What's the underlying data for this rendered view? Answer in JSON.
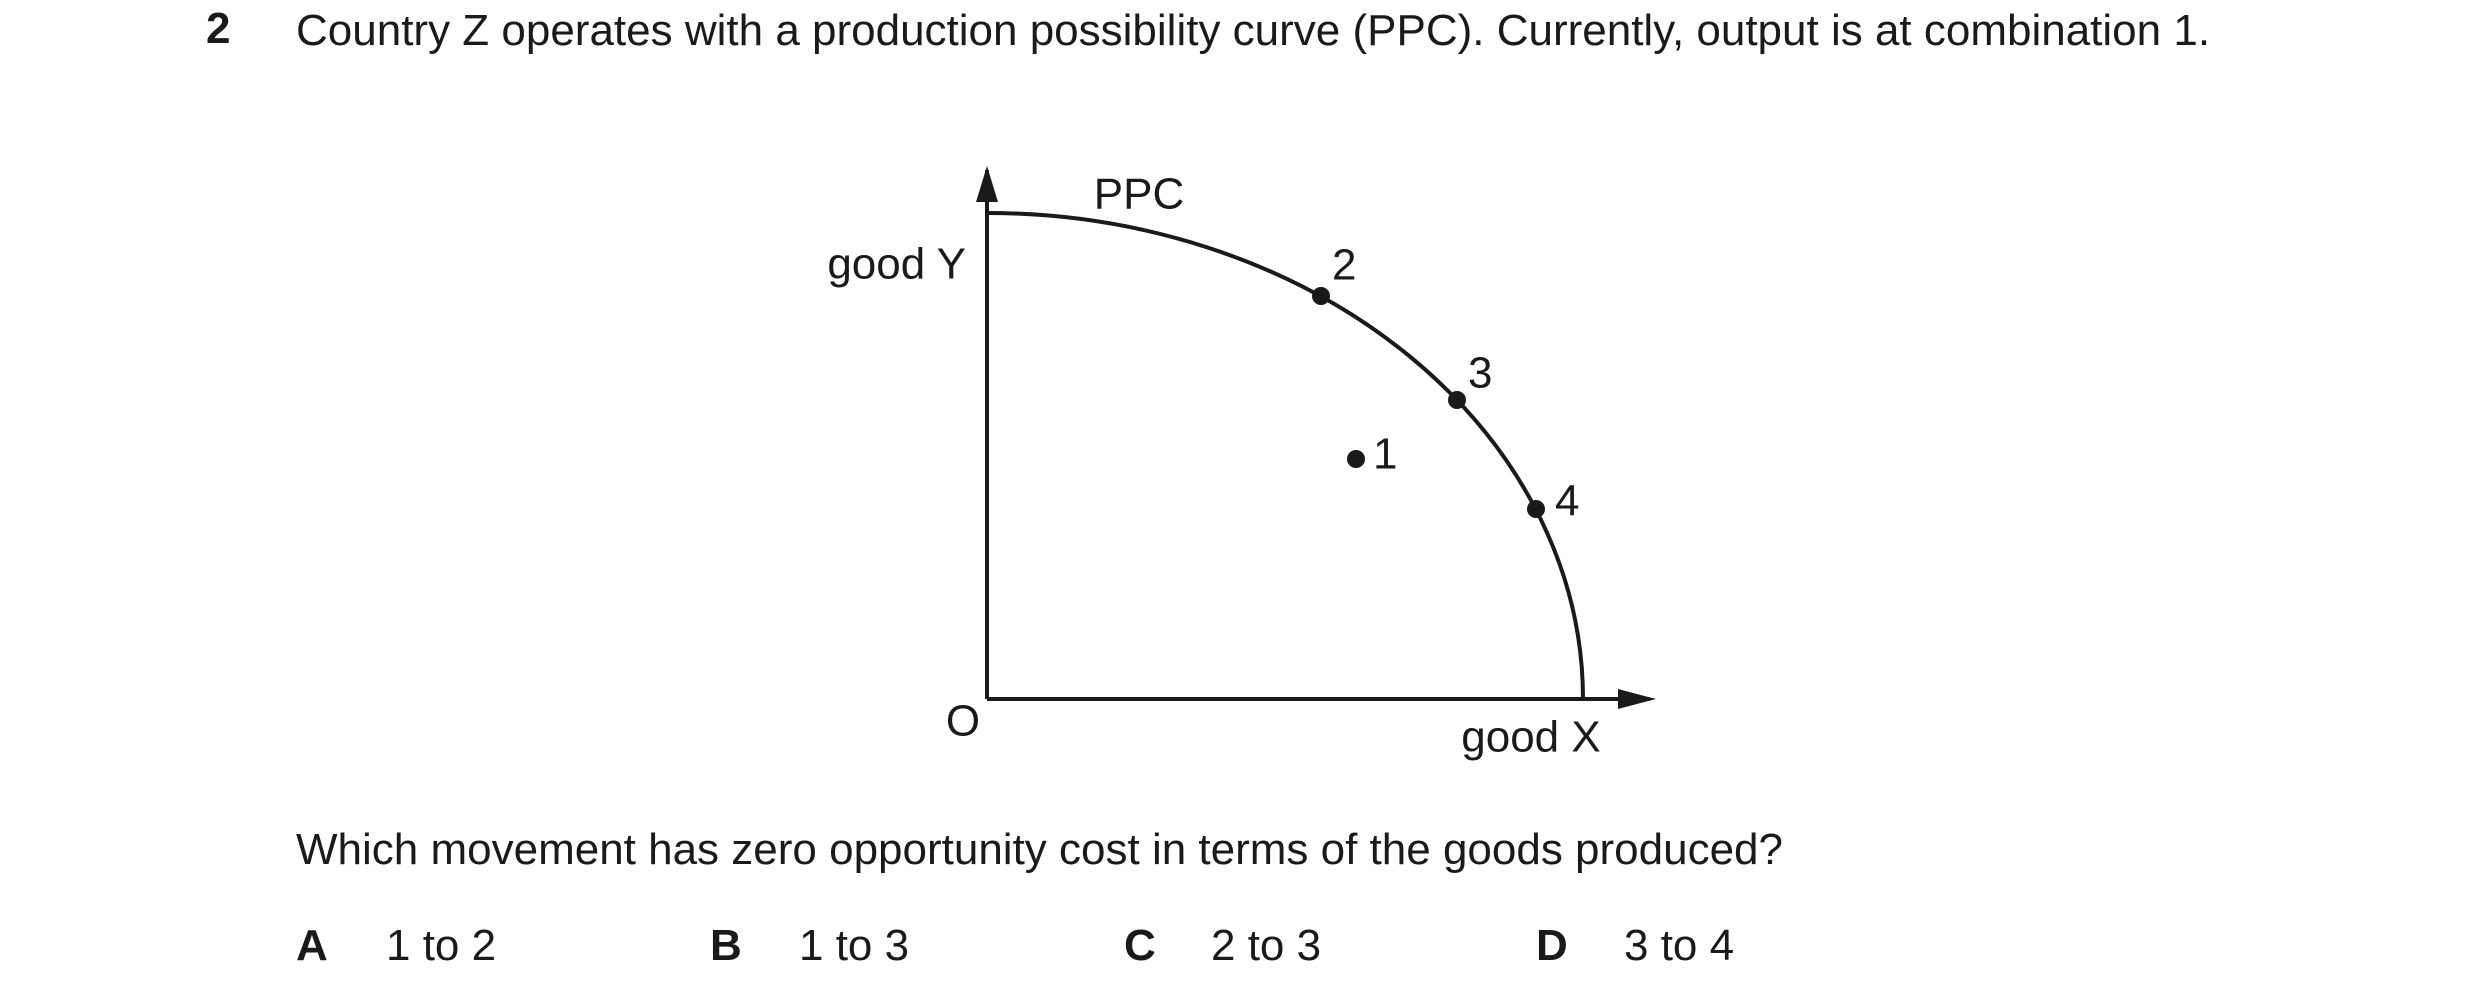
{
  "question": {
    "number": "2",
    "text": "Country Z operates with a production possibility curve (PPC). Currently, output is at combination 1.",
    "prompt": "Which movement has zero opportunity cost in terms of the goods produced?"
  },
  "diagram": {
    "curve_label": "PPC",
    "y_axis_label": "good Y",
    "x_axis_label": "good X",
    "origin_label": "O",
    "points": [
      "1",
      "2",
      "3",
      "4"
    ]
  },
  "options": [
    {
      "letter": "A",
      "text": "1 to 2"
    },
    {
      "letter": "B",
      "text": "1 to 3"
    },
    {
      "letter": "C",
      "text": "2 to 3"
    },
    {
      "letter": "D",
      "text": "3 to 4"
    }
  ]
}
